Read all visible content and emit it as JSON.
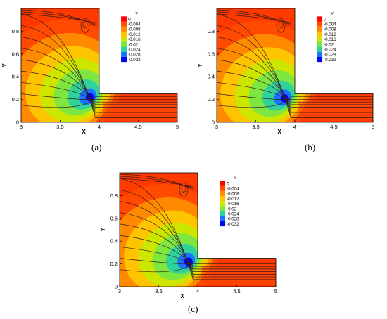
{
  "chart_data": [
    {
      "type": "heatmap",
      "caption": "(a)",
      "xlabel": "X",
      "ylabel": "Y",
      "xlim": [
        3,
        5
      ],
      "ylim": [
        0,
        1
      ],
      "xticks": [
        "3",
        "3.5",
        "4",
        "4.5",
        "5"
      ],
      "yticks": [
        "0",
        "0.2",
        "0.4",
        "0.6",
        "0.8"
      ],
      "legend_title": "v",
      "legend_levels": [
        "0",
        "-0.004",
        "-0.008",
        "-0.012",
        "-0.016",
        "-0.02",
        "-0.024",
        "-0.028",
        "-0.032"
      ],
      "legend_position": "inside top-right",
      "vortex_core": [
        3.88,
        0.22
      ],
      "min_value": -0.032
    },
    {
      "type": "heatmap",
      "caption": "(b)",
      "xlabel": "X",
      "ylabel": "Y",
      "xlim": [
        3,
        5
      ],
      "ylim": [
        0,
        1
      ],
      "xticks": [
        "3",
        "3.5",
        "4",
        "4.5",
        "5"
      ],
      "yticks": [
        "0",
        "0.2",
        "0.4",
        "0.6",
        "0.8"
      ],
      "legend_title": "v",
      "legend_levels": [
        "0",
        "-0.004",
        "-0.008",
        "-0.012",
        "-0.016",
        "-0.02",
        "-0.024",
        "-0.028",
        "-0.032"
      ],
      "legend_position": "inside top-right",
      "vortex_core": [
        3.87,
        0.21
      ],
      "min_value": -0.032
    },
    {
      "type": "heatmap",
      "caption": "(c)",
      "xlabel": "X",
      "ylabel": "Y",
      "xlim": [
        3,
        5
      ],
      "ylim": [
        0,
        1
      ],
      "xticks": [
        "3",
        "3.5",
        "4",
        "4.5",
        "5"
      ],
      "yticks": [
        "0",
        "0.2",
        "0.4",
        "0.6",
        "0.8"
      ],
      "legend_title": "v",
      "legend_levels": [
        "0",
        "-0.004",
        "-0.008",
        "-0.012",
        "-0.016",
        "-0.02",
        "-0.024",
        "-0.028",
        "-0.032"
      ],
      "legend_position": "inside top-right",
      "vortex_core": [
        3.88,
        0.22
      ],
      "min_value": -0.032
    }
  ],
  "colors": {
    "levels": [
      "#ff0000",
      "#ff4a00",
      "#ff8a00",
      "#ffc400",
      "#cce600",
      "#7fe640",
      "#2fd29a",
      "#1b74ff",
      "#0008e6"
    ],
    "background": "#ff3a00",
    "streamline": "#3a1a1a"
  }
}
